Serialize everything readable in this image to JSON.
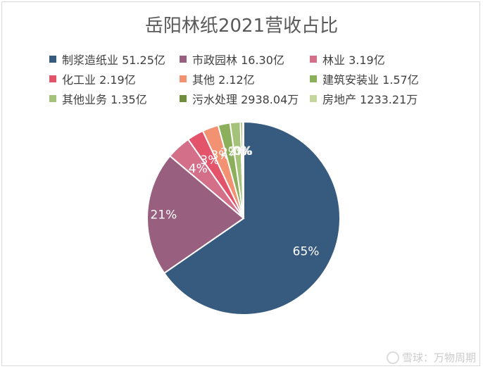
{
  "chart_data": {
    "type": "pie",
    "title": "岳阳林纸2021营收占比",
    "legend_position": "top",
    "series": [
      {
        "label": "制浆造纸业 51.25亿",
        "value": 51.25,
        "unit": "亿",
        "percent_label": "65%",
        "color": "#375A7F"
      },
      {
        "label": "市政园林 16.30亿",
        "value": 16.3,
        "unit": "亿",
        "percent_label": "21%",
        "color": "#98607E"
      },
      {
        "label": "林业 3.19亿",
        "value": 3.19,
        "unit": "亿",
        "percent_label": "4%",
        "color": "#D46F8A"
      },
      {
        "label": "化工业 2.19亿",
        "value": 2.19,
        "unit": "亿",
        "percent_label": "3%",
        "color": "#E3536A"
      },
      {
        "label": "其他 2.12亿",
        "value": 2.12,
        "unit": "亿",
        "percent_label": "3%",
        "color": "#F39272"
      },
      {
        "label": "建筑安装业 1.57亿",
        "value": 1.57,
        "unit": "亿",
        "percent_label": "2%",
        "color": "#8BAF5A"
      },
      {
        "label": "其他业务 1.35亿",
        "value": 1.35,
        "unit": "亿",
        "percent_label": "2%",
        "color": "#A5C27B"
      },
      {
        "label": "污水处理 2938.04万",
        "value": 2938.04,
        "unit": "万",
        "percent_label": "0%",
        "color": "#6E8E3A"
      },
      {
        "label": "房地产 1233.21万",
        "value": 1233.21,
        "unit": "万",
        "percent_label": "0%",
        "color": "#C3D69B"
      }
    ]
  },
  "watermark": {
    "text": "雪球：万物周期",
    "icon": "snowball-icon"
  }
}
